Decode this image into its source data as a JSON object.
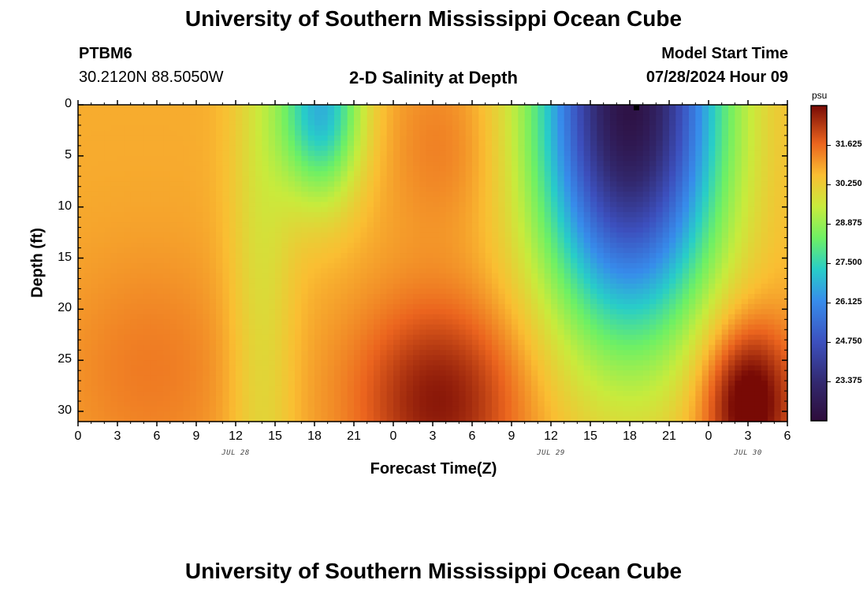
{
  "header": {
    "title": "University of Southern Mississippi Ocean Cube",
    "station_id": "PTBM6",
    "location": "30.2120N  88.5050W",
    "subtitle": "2-D Salinity at Depth",
    "model_start_label": "Model Start Time",
    "model_start_value": "07/28/2024 Hour 09"
  },
  "footer": {
    "title": "University of Southern Mississippi Ocean Cube"
  },
  "chart_data": {
    "type": "heatmap",
    "title": "2-D Salinity at Depth",
    "xlabel": "Forecast Time(Z)",
    "ylabel": "Depth (ft)",
    "x_range_hours": [
      0,
      54
    ],
    "y_range_ft": [
      0,
      31
    ],
    "x_tick_labels": [
      "0",
      "3",
      "6",
      "9",
      "12",
      "15",
      "18",
      "21",
      "0",
      "3",
      "6",
      "9",
      "12",
      "15",
      "18",
      "21",
      "0",
      "3",
      "6"
    ],
    "x_tick_hours": [
      0,
      3,
      6,
      9,
      12,
      15,
      18,
      21,
      24,
      27,
      30,
      33,
      36,
      39,
      42,
      45,
      48,
      51,
      54
    ],
    "y_ticks": [
      0,
      5,
      10,
      15,
      20,
      25,
      30
    ],
    "day_labels": [
      {
        "text": "JUL 28",
        "hour": 12
      },
      {
        "text": "JUL 29",
        "hour": 36
      },
      {
        "text": "JUL 30",
        "hour": 51
      }
    ],
    "colorbar": {
      "unit": "psu",
      "min": 22.0,
      "max": 33.0,
      "ticks": [
        "31.625",
        "30.250",
        "28.875",
        "27.500",
        "26.125",
        "24.750",
        "23.375"
      ],
      "tick_values": [
        31.625,
        30.25,
        28.875,
        27.5,
        26.125,
        24.75,
        23.375
      ]
    },
    "salinity_psu": {
      "base": 30.8,
      "features": [
        {
          "kind": "fresh_plume",
          "center_hour": 18.5,
          "center_depth_ft": 0,
          "hour_sigma": 2.2,
          "depth_sigma": 6.5,
          "delta_psu": -4.0
        },
        {
          "kind": "fresh_plume",
          "center_hour": 42.0,
          "center_depth_ft": 0,
          "hour_sigma": 4.8,
          "depth_sigma": 15.0,
          "delta_psu": -8.5
        },
        {
          "kind": "salty_core",
          "center_hour": 27.5,
          "center_depth_ft": 29,
          "hour_sigma": 4.5,
          "depth_sigma": 7.0,
          "delta_psu": 2.0
        },
        {
          "kind": "salty_core",
          "center_hour": 51.0,
          "center_depth_ft": 29,
          "hour_sigma": 2.5,
          "depth_sigma": 5.5,
          "delta_psu": 2.8
        },
        {
          "kind": "salty_core",
          "center_hour": 5.5,
          "center_depth_ft": 26,
          "hour_sigma": 5.0,
          "depth_sigma": 8.0,
          "delta_psu": 0.6
        },
        {
          "kind": "salty_core",
          "center_hour": 28.0,
          "center_depth_ft": 4,
          "hour_sigma": 3.0,
          "depth_sigma": 6.0,
          "delta_psu": 0.6
        },
        {
          "kind": "fresh_band",
          "center_hour": 14.0,
          "center_depth_ft": 15,
          "hour_sigma": 1.8,
          "depth_sigma": 30.0,
          "delta_psu": -1.0
        }
      ]
    }
  }
}
